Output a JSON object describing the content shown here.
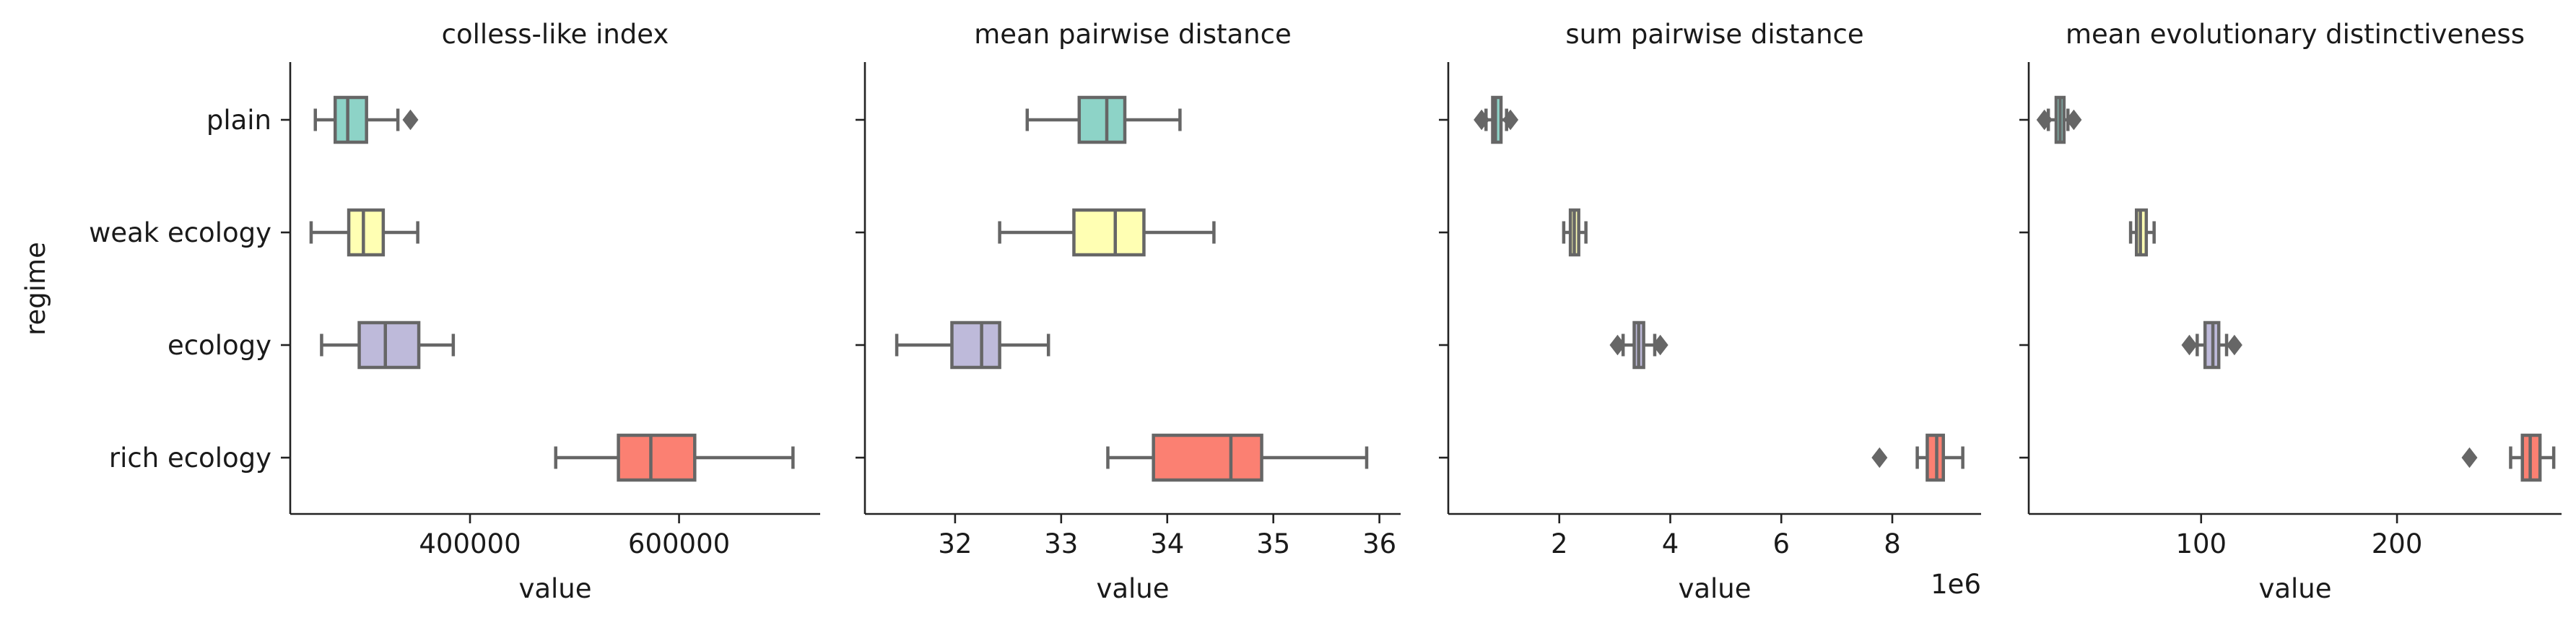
{
  "chart_data": {
    "type": "boxplot",
    "ylabel": "regime",
    "categories": [
      "plain",
      "weak ecology",
      "ecology",
      "rich ecology"
    ],
    "colors": [
      "#8dd3c7",
      "#ffffb3",
      "#bebada",
      "#fb8072"
    ],
    "panels": [
      {
        "title": "colless-like index",
        "xlabel": "value",
        "offset_text": "",
        "xlim": [
          228000,
          735000
        ],
        "xticks": [
          {
            "v": 400000,
            "label": "400000"
          },
          {
            "v": 600000,
            "label": "600000"
          }
        ],
        "boxes": [
          {
            "category": "plain",
            "whislo": 252000,
            "q1": 271000,
            "med": 283000,
            "q3": 301000,
            "whishi": 331000,
            "fliers": [
              343000
            ]
          },
          {
            "category": "weak ecology",
            "whislo": 248000,
            "q1": 284000,
            "med": 298000,
            "q3": 317000,
            "whishi": 350000,
            "fliers": []
          },
          {
            "category": "ecology",
            "whislo": 258000,
            "q1": 294000,
            "med": 319000,
            "q3": 351000,
            "whishi": 384000,
            "fliers": []
          },
          {
            "category": "rich ecology",
            "whislo": 482000,
            "q1": 542000,
            "med": 573000,
            "q3": 615000,
            "whishi": 709000,
            "fliers": []
          }
        ]
      },
      {
        "title": "mean pairwise distance",
        "xlabel": "value",
        "offset_text": "",
        "xlim": [
          31.15,
          36.2
        ],
        "xticks": [
          {
            "v": 32,
            "label": "32"
          },
          {
            "v": 33,
            "label": "33"
          },
          {
            "v": 34,
            "label": "34"
          },
          {
            "v": 35,
            "label": "35"
          },
          {
            "v": 36,
            "label": "36"
          }
        ],
        "boxes": [
          {
            "category": "plain",
            "whislo": 32.68,
            "q1": 33.17,
            "med": 33.43,
            "q3": 33.6,
            "whishi": 34.12,
            "fliers": []
          },
          {
            "category": "weak ecology",
            "whislo": 32.42,
            "q1": 33.12,
            "med": 33.51,
            "q3": 33.78,
            "whishi": 34.44,
            "fliers": []
          },
          {
            "category": "ecology",
            "whislo": 31.45,
            "q1": 31.97,
            "med": 32.25,
            "q3": 32.42,
            "whishi": 32.88,
            "fliers": []
          },
          {
            "category": "rich ecology",
            "whislo": 33.44,
            "q1": 33.87,
            "med": 34.6,
            "q3": 34.89,
            "whishi": 35.88,
            "fliers": []
          }
        ]
      },
      {
        "title": "sum pairwise distance",
        "xlabel": "value",
        "offset_text": "1e6",
        "xlim": [
          0.0,
          9.6
        ],
        "xticks": [
          {
            "v": 2,
            "label": "2"
          },
          {
            "v": 4,
            "label": "4"
          },
          {
            "v": 6,
            "label": "6"
          },
          {
            "v": 8,
            "label": "8"
          }
        ],
        "boxes": [
          {
            "category": "plain",
            "whislo": 0.68,
            "q1": 0.8,
            "med": 0.85,
            "q3": 0.95,
            "whishi": 1.05,
            "fliers": [
              0.6,
              1.12
            ]
          },
          {
            "category": "weak ecology",
            "whislo": 2.08,
            "q1": 2.2,
            "med": 2.27,
            "q3": 2.35,
            "whishi": 2.48,
            "fliers": []
          },
          {
            "category": "ecology",
            "whislo": 3.15,
            "q1": 3.35,
            "med": 3.43,
            "q3": 3.52,
            "whishi": 3.72,
            "fliers": [
              3.05,
              3.82
            ]
          },
          {
            "category": "rich ecology",
            "whislo": 8.45,
            "q1": 8.63,
            "med": 8.8,
            "q3": 8.92,
            "whishi": 9.27,
            "fliers": [
              7.77
            ]
          }
        ]
      },
      {
        "title": "mean evolutionary distinctiveness",
        "xlabel": "value",
        "offset_text": "",
        "xlim": [
          12,
          284
        ],
        "xticks": [
          {
            "v": 100,
            "label": "100"
          },
          {
            "v": 200,
            "label": "200"
          }
        ],
        "boxes": [
          {
            "category": "plain",
            "whislo": 22,
            "q1": 26,
            "med": 28,
            "q3": 30,
            "whishi": 32,
            "fliers": [
              20,
              35
            ]
          },
          {
            "category": "weak ecology",
            "whislo": 64,
            "q1": 67,
            "med": 69,
            "q3": 72,
            "whishi": 76,
            "fliers": []
          },
          {
            "category": "ecology",
            "whislo": 98,
            "q1": 102,
            "med": 106,
            "q3": 109,
            "whishi": 113,
            "fliers": [
              94,
              117
            ]
          },
          {
            "category": "rich ecology",
            "whislo": 258,
            "q1": 264,
            "med": 268,
            "q3": 273,
            "whishi": 280,
            "fliers": [
              237
            ]
          }
        ]
      }
    ]
  }
}
